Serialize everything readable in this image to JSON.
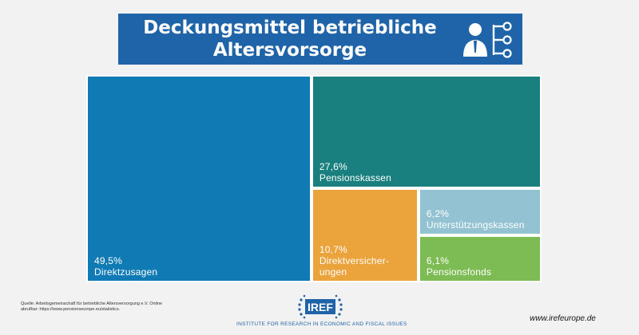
{
  "title": {
    "line1": "Deckungsmittel betriebliche",
    "line2": "Altersvorsorge",
    "icon": "business-person-hierarchy-icon"
  },
  "chart_data": {
    "type": "treemap",
    "items": [
      {
        "value": 49.5,
        "value_label": "49,5%",
        "label": "Direktzusagen",
        "color": "#0f7ab4"
      },
      {
        "value": 27.6,
        "value_label": "27,6%",
        "label": "Pensionskassen",
        "color": "#19807f"
      },
      {
        "value": 10.7,
        "value_label": "10,7%",
        "label": "Direktversicher-\nungen",
        "color": "#eba33c"
      },
      {
        "value": 6.2,
        "value_label": "6,2%",
        "label": "Unterstützungskassen",
        "color": "#93c3d3"
      },
      {
        "value": 6.1,
        "value_label": "6,1%",
        "label": "Pensionsfonds",
        "color": "#7dbc54"
      }
    ]
  },
  "footer": {
    "source_line1": "Quelle: Arbeitsgemeinschaft für betriebliche Altersversorgung e.V. Online",
    "source_line2": "abrufbar: https://www.pensionseurope.eu/statistics.",
    "logo_text": "IREF",
    "institute": "INSTITUTE FOR RESEARCH IN ECONOMIC AND FISCAL ISSUES",
    "website": "www.irefeurope.de"
  }
}
